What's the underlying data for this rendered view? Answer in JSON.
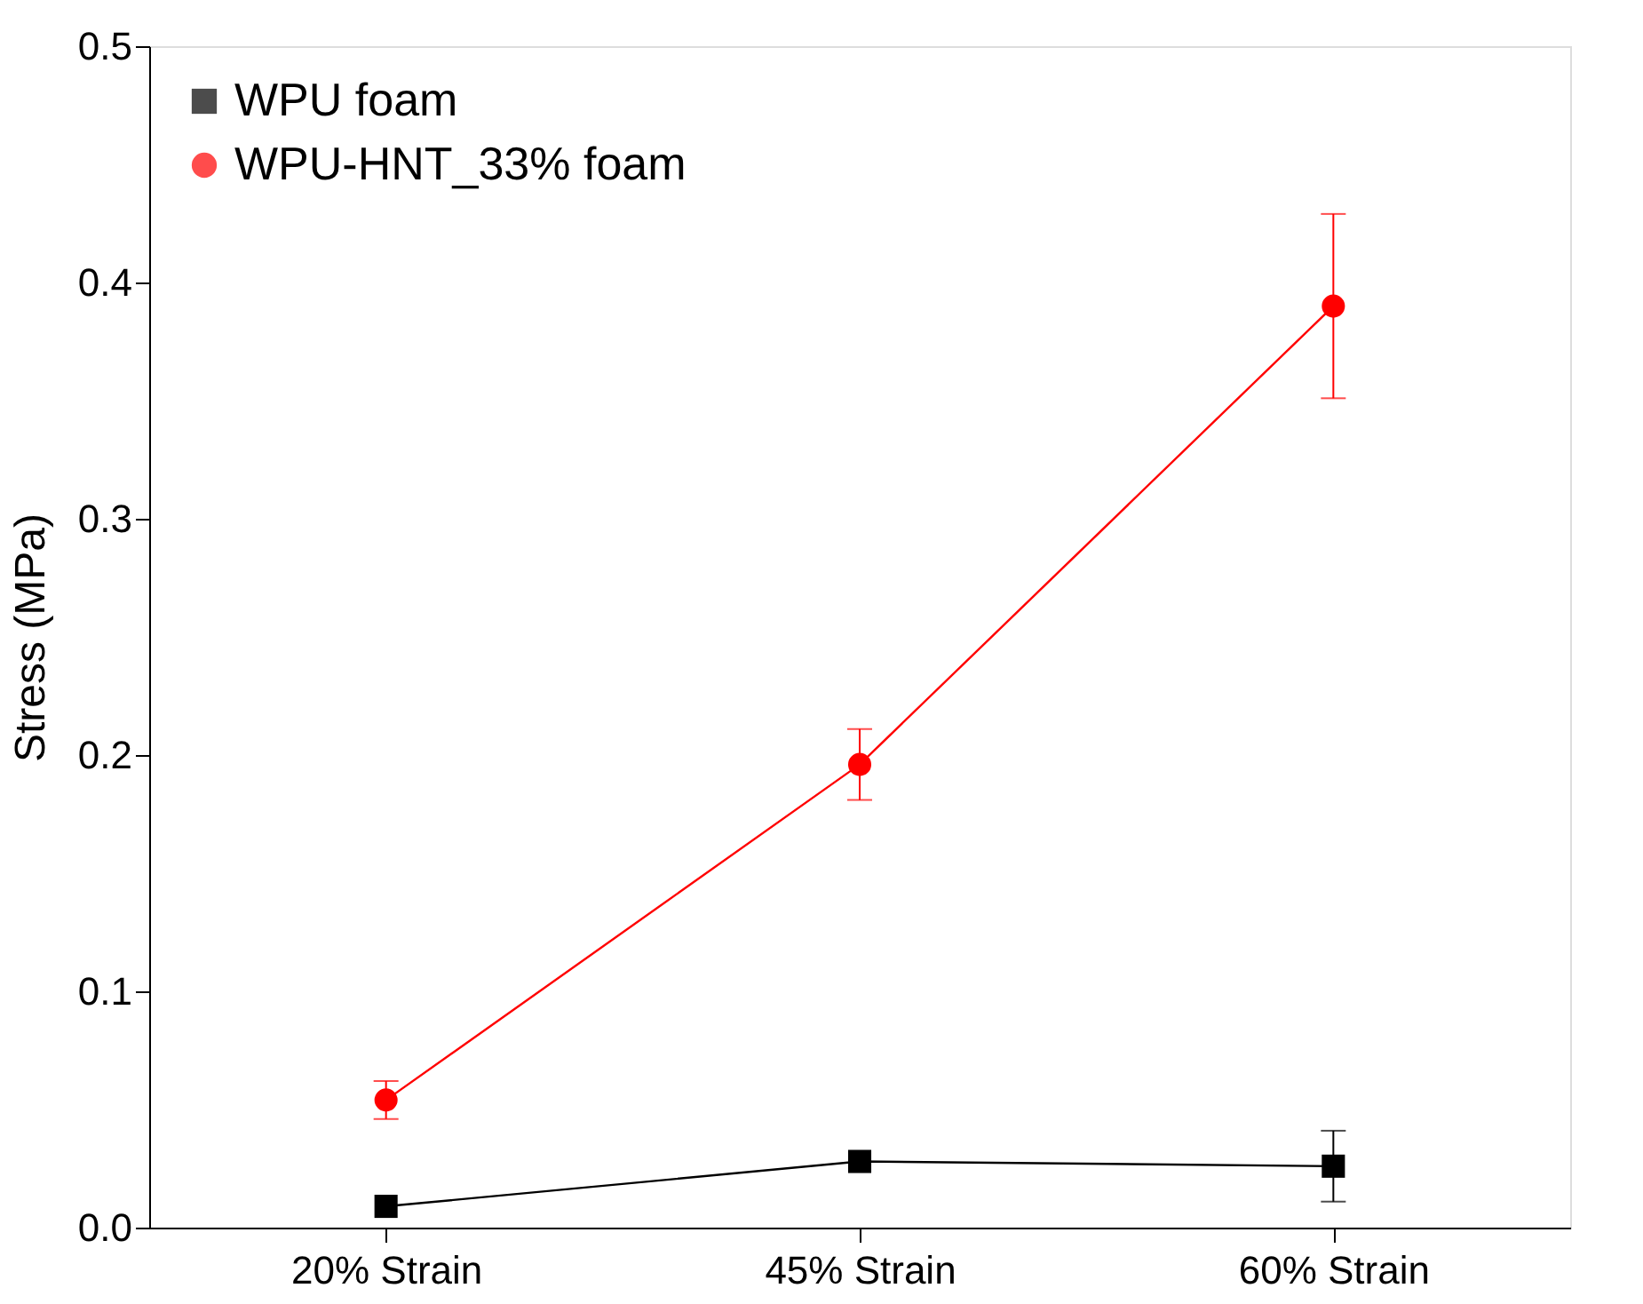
{
  "chart_data": {
    "type": "line",
    "ylabel": "Stress (MPa)",
    "categories": [
      "20% Strain",
      "45% Strain",
      "60% Strain"
    ],
    "series": [
      {
        "name": "WPU foam",
        "color": "#000000",
        "marker": "square",
        "values": [
          0.009,
          0.028,
          0.026
        ],
        "errors": [
          null,
          null,
          0.015
        ]
      },
      {
        "name": "WPU-HNT_33% foam",
        "color": "#ff0000",
        "marker": "circle",
        "values": [
          0.054,
          0.196,
          0.39
        ],
        "errors": [
          0.008,
          0.015,
          0.039
        ]
      }
    ],
    "ylim": [
      0,
      0.5
    ],
    "yticks": [
      {
        "value": 0,
        "label": "0.0"
      },
      0.1,
      0.2,
      0.3,
      0.4,
      0.5
    ],
    "grid": false,
    "legend": "top left",
    "line_style": "solid"
  }
}
